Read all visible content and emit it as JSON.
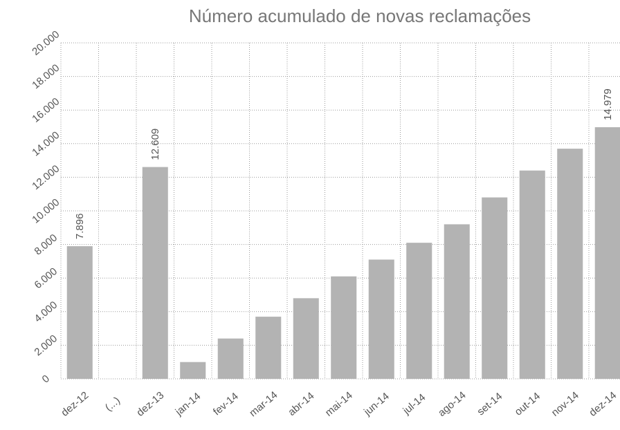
{
  "chart_data": {
    "type": "bar",
    "title": "Número acumulado de novas reclamações",
    "categories": [
      "dez-12",
      "(...)",
      "dez-13",
      "jan-14",
      "fev-14",
      "mar-14",
      "abr-14",
      "mai-14",
      "jun-14",
      "jul-14",
      "ago-14",
      "set-14",
      "out-14",
      "nov-14",
      "dez-14"
    ],
    "values": [
      7896,
      null,
      12609,
      1000,
      2400,
      3700,
      4800,
      6100,
      7100,
      8100,
      9200,
      10800,
      12400,
      13700,
      14979
    ],
    "value_labels": [
      "7.896",
      null,
      "12.609",
      null,
      null,
      null,
      null,
      null,
      null,
      null,
      null,
      null,
      null,
      null,
      "14.979"
    ],
    "color": "#b3b3b3",
    "ylim": [
      0,
      20000
    ],
    "yticks": [
      0,
      {
        "value": 2000,
        "label": "2.000"
      },
      {
        "value": 4000,
        "label": "4.000"
      },
      {
        "value": 6000,
        "label": "6.000"
      },
      {
        "value": 8000,
        "label": "8.000"
      },
      {
        "value": 10000,
        "label": "10.000"
      },
      {
        "value": 12000,
        "label": "12.000"
      },
      {
        "value": 14000,
        "label": "14.000"
      },
      {
        "value": 16000,
        "label": "16.000"
      },
      {
        "value": 18000,
        "label": "18.000"
      },
      {
        "value": 20000,
        "label": "20.000"
      }
    ],
    "grid": true
  }
}
